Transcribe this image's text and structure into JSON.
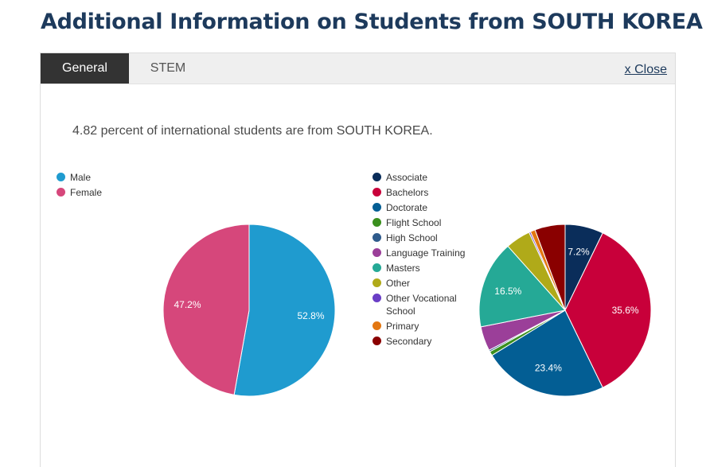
{
  "header": {
    "title": "Additional Information on Students from SOUTH KOREA"
  },
  "tabs": [
    {
      "label": "General",
      "active": true
    },
    {
      "label": "STEM",
      "active": false
    }
  ],
  "close_label": "x Close",
  "intro_text": "4.82 percent of international students are from SOUTH KOREA.",
  "chart_data": [
    {
      "type": "pie",
      "title": "",
      "legend_position": "top-left",
      "slices": [
        {
          "name": "Male",
          "value": 52.8,
          "label": "52.8%",
          "color": "#1f9bcf"
        },
        {
          "name": "Female",
          "value": 47.2,
          "label": "47.2%",
          "color": "#d6477b"
        }
      ]
    },
    {
      "type": "pie",
      "title": "",
      "legend_position": "left",
      "slices": [
        {
          "name": "Associate",
          "value": 7.2,
          "label": "7.2%",
          "color": "#0a2d5a"
        },
        {
          "name": "Bachelors",
          "value": 35.6,
          "label": "35.6%",
          "color": "#c8003a"
        },
        {
          "name": "Doctorate",
          "value": 23.4,
          "label": "23.4%",
          "color": "#035e94"
        },
        {
          "name": "Flight School",
          "value": 0.8,
          "label": "",
          "color": "#3a8f1d"
        },
        {
          "name": "High School",
          "value": 0.3,
          "label": "",
          "color": "#2f5b8c"
        },
        {
          "name": "Language Training",
          "value": 4.6,
          "label": "",
          "color": "#9b3f99"
        },
        {
          "name": "Masters",
          "value": 16.5,
          "label": "16.5%",
          "color": "#25a996"
        },
        {
          "name": "Other",
          "value": 4.7,
          "label": "",
          "color": "#b0aa19"
        },
        {
          "name": "Other Vocational School",
          "value": 0.3,
          "label": "",
          "color": "#6a3ec6"
        },
        {
          "name": "Primary",
          "value": 0.9,
          "label": "",
          "color": "#e37711"
        },
        {
          "name": "Secondary",
          "value": 5.7,
          "label": "",
          "color": "#8a0000"
        }
      ]
    }
  ]
}
